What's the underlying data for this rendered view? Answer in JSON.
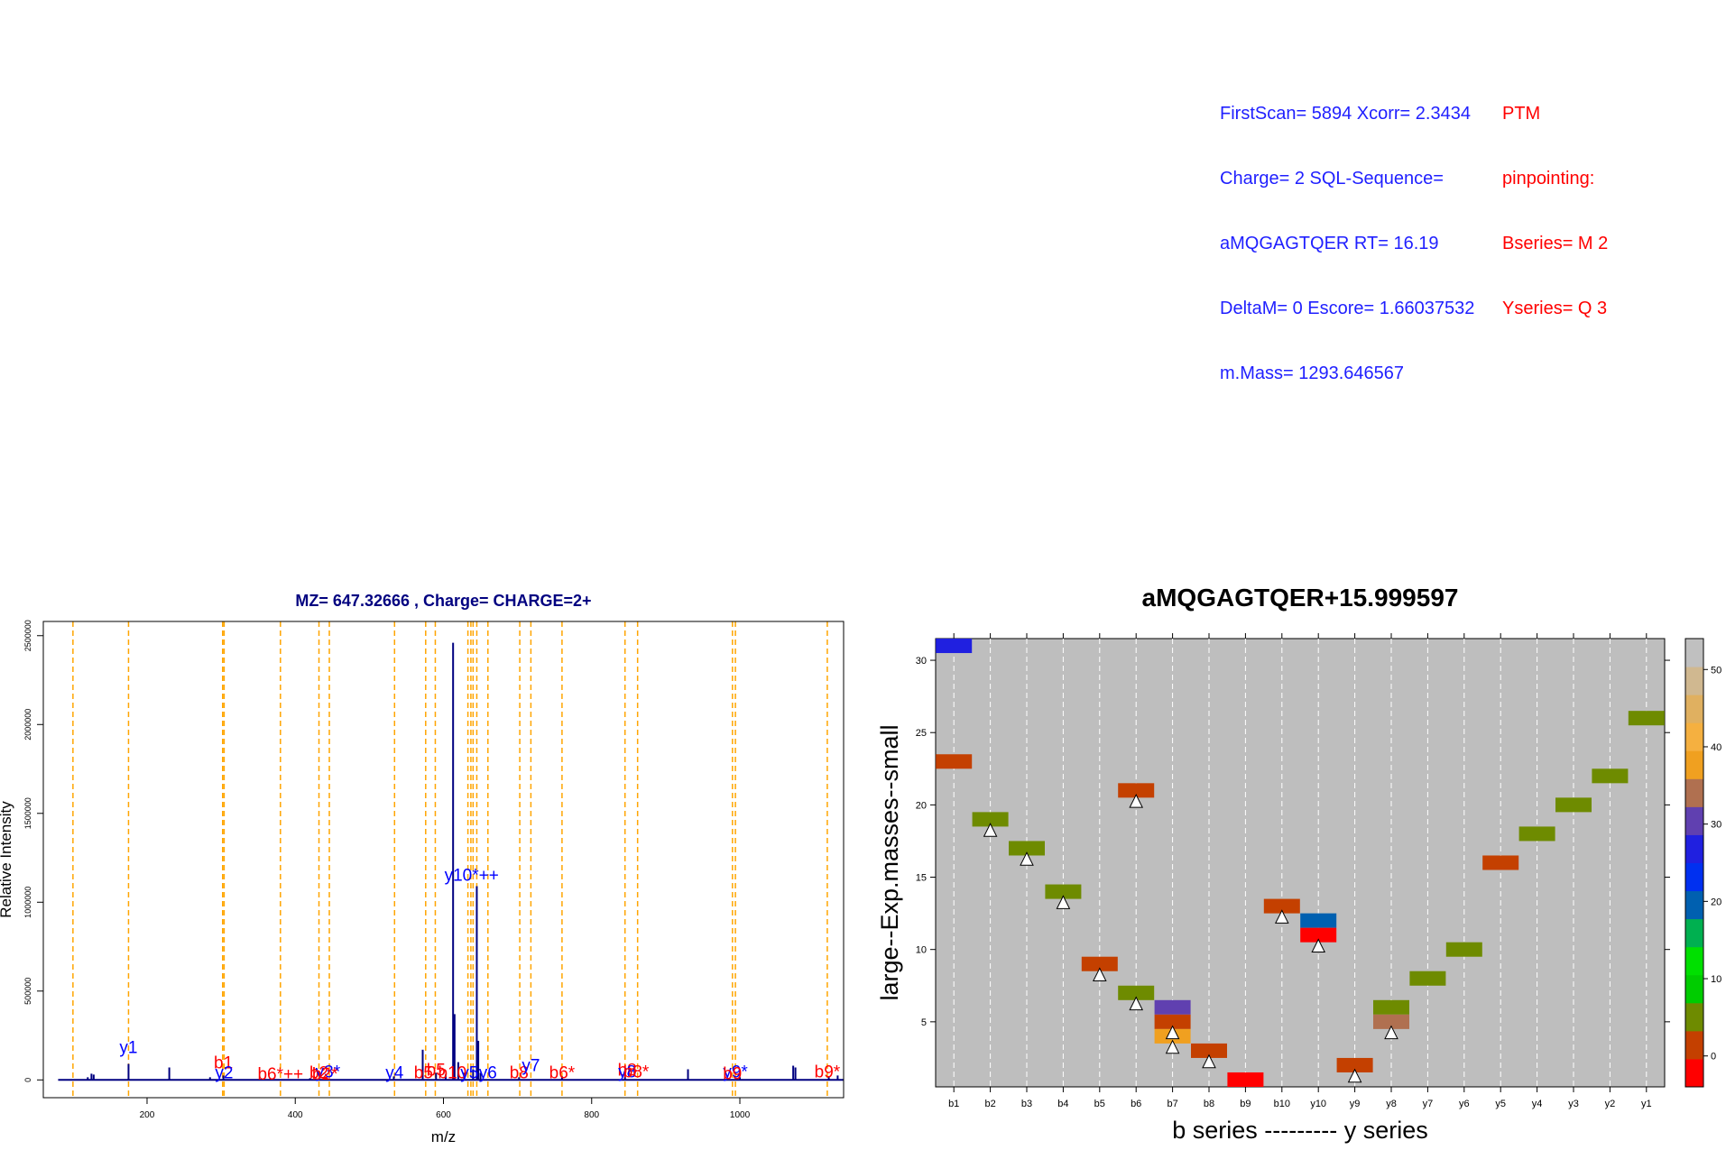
{
  "info": {
    "blue_lines": [
      "FirstScan= 5894 Xcorr= 2.3434",
      "Charge= 2 SQL-Sequence=",
      "aMQGAGTQER RT= 16.19",
      "DeltaM= 0 Escore= 1.66037532",
      "m.Mass= 1293.646567"
    ],
    "red_lines": [
      "PTM",
      "pinpointing:",
      "Bseries= M 2",
      "Yseries= Q 3"
    ]
  },
  "chart_data": [
    {
      "type": "bar",
      "title": "MZ= 647.32666 , Charge= CHARGE=2+",
      "xlabel": "m/z",
      "ylabel": "Relative Intensity",
      "xlim": [
        60,
        1140
      ],
      "ylim": [
        -100000,
        2580000
      ],
      "xticks": [
        200,
        400,
        600,
        800,
        1000
      ],
      "yticks": [
        0,
        500000,
        1000000,
        1500000,
        2000000,
        2500000
      ],
      "colors": {
        "title": "#000080",
        "peaks": "#000080",
        "lines": "#ffa500",
        "b_label": "#ff0000",
        "y_label": "#0000ff"
      },
      "peaks": [
        {
          "mz": 120,
          "i": 15000
        },
        {
          "mz": 125,
          "i": 35000
        },
        {
          "mz": 128,
          "i": 30000
        },
        {
          "mz": 175,
          "i": 90000
        },
        {
          "mz": 230,
          "i": 70000
        },
        {
          "mz": 285,
          "i": 15000
        },
        {
          "mz": 303,
          "i": 25000
        },
        {
          "mz": 420,
          "i": 10000
        },
        {
          "mz": 533,
          "i": 20000
        },
        {
          "mz": 572,
          "i": 170000
        },
        {
          "mz": 590,
          "i": 40000
        },
        {
          "mz": 603,
          "i": 30000
        },
        {
          "mz": 613,
          "i": 2460000
        },
        {
          "mz": 615,
          "i": 370000
        },
        {
          "mz": 620,
          "i": 100000
        },
        {
          "mz": 628,
          "i": 40000
        },
        {
          "mz": 640,
          "i": 60000
        },
        {
          "mz": 645,
          "i": 1090000
        },
        {
          "mz": 647,
          "i": 220000
        },
        {
          "mz": 650,
          "i": 40000
        },
        {
          "mz": 702,
          "i": 15000
        },
        {
          "mz": 760,
          "i": 20000
        },
        {
          "mz": 845,
          "i": 30000
        },
        {
          "mz": 930,
          "i": 60000
        },
        {
          "mz": 1000,
          "i": 15000
        },
        {
          "mz": 1072,
          "i": 80000
        },
        {
          "mz": 1075,
          "i": 70000
        },
        {
          "mz": 1120,
          "i": 20000
        },
        {
          "mz": 1132,
          "i": 25000
        }
      ],
      "ion_lines": [
        100,
        175,
        302,
        304,
        380,
        432,
        446,
        534,
        576,
        589,
        633,
        637,
        640,
        645,
        660,
        703,
        718,
        760,
        845,
        862,
        990,
        994,
        1118
      ],
      "ion_labels": [
        {
          "text": "y1",
          "mz": 175,
          "i": 130000,
          "series": "y"
        },
        {
          "text": "b1",
          "mz": 303,
          "i": 45000,
          "series": "b"
        },
        {
          "text": "y2",
          "mz": 304,
          "i": -10000,
          "series": "y"
        },
        {
          "text": "b6*++",
          "mz": 380,
          "i": -20000,
          "series": "b"
        },
        {
          "text": "b2",
          "mz": 432,
          "i": -10000,
          "series": "b"
        },
        {
          "text": "y3*",
          "mz": 444,
          "i": -5000,
          "series": "y"
        },
        {
          "text": "b2*",
          "mz": 440,
          "i": -20000,
          "series": "b"
        },
        {
          "text": "y4",
          "mz": 534,
          "i": -10000,
          "series": "y"
        },
        {
          "text": "b5",
          "mz": 573,
          "i": -10000,
          "series": "b"
        },
        {
          "text": "b5",
          "mz": 590,
          "i": 5000,
          "series": "b"
        },
        {
          "text": "b10",
          "mz": 612,
          "i": -10000,
          "series": "b"
        },
        {
          "text": "y5",
          "mz": 635,
          "i": -10000,
          "series": "y"
        },
        {
          "text": "y10*++",
          "mz": 638,
          "i": 1100000,
          "series": "y"
        },
        {
          "text": "y6",
          "mz": 660,
          "i": -10000,
          "series": "y"
        },
        {
          "text": "b8",
          "mz": 702,
          "i": -10000,
          "series": "b"
        },
        {
          "text": "y7",
          "mz": 718,
          "i": 30000,
          "series": "y"
        },
        {
          "text": "b6*",
          "mz": 760,
          "i": -10000,
          "series": "b"
        },
        {
          "text": "b8",
          "mz": 848,
          "i": 5000,
          "series": "b"
        },
        {
          "text": "y8",
          "mz": 848,
          "i": -5000,
          "series": "y"
        },
        {
          "text": "b8*",
          "mz": 860,
          "i": -5000,
          "series": "b"
        },
        {
          "text": "y9*",
          "mz": 994,
          "i": -5000,
          "series": "y"
        },
        {
          "text": "b9",
          "mz": 990,
          "i": -15000,
          "series": "b"
        },
        {
          "text": "b9*",
          "mz": 1118,
          "i": -5000,
          "series": "b"
        }
      ]
    },
    {
      "type": "heatmap",
      "title": "aMQGAGTQER+15.999597",
      "xlabel": "b series --------- y series",
      "ylabel": "large--Exp.masses--small",
      "categories": [
        "b1",
        "b2",
        "b3",
        "b4",
        "b5",
        "b6",
        "b7",
        "b8",
        "b9",
        "b10",
        "y10",
        "y9",
        "y8",
        "y7",
        "y6",
        "y5",
        "y4",
        "y3",
        "y2",
        "y1"
      ],
      "ylim": [
        0.5,
        31.5
      ],
      "yticks": [
        5,
        10,
        15,
        20,
        25,
        30
      ],
      "colorbar": {
        "ticks": [
          0,
          10,
          20,
          30,
          40,
          50
        ],
        "range": [
          -4,
          54
        ],
        "colors": [
          "#ff0000",
          "#c44000",
          "#6e8b00",
          "#00cc00",
          "#00e000",
          "#00b050",
          "#0060b0",
          "#0030f0",
          "#2020e0",
          "#6040b0",
          "#b07050",
          "#f0a020",
          "#f5b040",
          "#e0b060",
          "#d0b890",
          "#c0c0c0"
        ]
      },
      "cells": [
        {
          "col": "b1",
          "row": 31,
          "color": "#2020e0"
        },
        {
          "col": "b1",
          "row": 23,
          "color": "#c44000"
        },
        {
          "col": "b2",
          "row": 19,
          "color": "#6e8b00"
        },
        {
          "col": "b3",
          "row": 17,
          "color": "#6e8b00"
        },
        {
          "col": "b4",
          "row": 14,
          "color": "#6e8b00"
        },
        {
          "col": "b5",
          "row": 9,
          "color": "#c44000"
        },
        {
          "col": "b6",
          "row": 21,
          "color": "#c44000"
        },
        {
          "col": "b6",
          "row": 7,
          "color": "#6e8b00"
        },
        {
          "col": "b7",
          "row": 6,
          "color": "#6040b0"
        },
        {
          "col": "b7",
          "row": 5,
          "color": "#c44000"
        },
        {
          "col": "b7",
          "row": 4,
          "color": "#f0a020"
        },
        {
          "col": "b8",
          "row": 3,
          "color": "#c44000"
        },
        {
          "col": "b9",
          "row": 1,
          "color": "#ff0000"
        },
        {
          "col": "b10",
          "row": 13,
          "color": "#c44000"
        },
        {
          "col": "y10",
          "row": 12,
          "color": "#0060b0"
        },
        {
          "col": "y10",
          "row": 11,
          "color": "#ff0000"
        },
        {
          "col": "y9",
          "row": 2,
          "color": "#c44000"
        },
        {
          "col": "y8",
          "row": 6,
          "color": "#6e8b00"
        },
        {
          "col": "y8",
          "row": 5,
          "color": "#b07050"
        },
        {
          "col": "y7",
          "row": 8,
          "color": "#6e8b00"
        },
        {
          "col": "y6",
          "row": 10,
          "color": "#6e8b00"
        },
        {
          "col": "y5",
          "row": 16,
          "color": "#c44000"
        },
        {
          "col": "y4",
          "row": 18,
          "color": "#6e8b00"
        },
        {
          "col": "y3",
          "row": 20,
          "color": "#6e8b00"
        },
        {
          "col": "y2",
          "row": 22,
          "color": "#6e8b00"
        },
        {
          "col": "y1",
          "row": 26,
          "color": "#6e8b00"
        }
      ],
      "triangles": [
        {
          "col": "b2",
          "row": 18.2
        },
        {
          "col": "b3",
          "row": 16.2
        },
        {
          "col": "b4",
          "row": 13.2
        },
        {
          "col": "b5",
          "row": 8.2
        },
        {
          "col": "b6",
          "row": 20.2
        },
        {
          "col": "b6",
          "row": 6.2
        },
        {
          "col": "b7",
          "row": 4.2
        },
        {
          "col": "b7",
          "row": 3.2
        },
        {
          "col": "b8",
          "row": 2.2
        },
        {
          "col": "b10",
          "row": 12.2
        },
        {
          "col": "y10",
          "row": 10.2
        },
        {
          "col": "y9",
          "row": 1.2
        },
        {
          "col": "y8",
          "row": 4.2
        }
      ]
    }
  ]
}
